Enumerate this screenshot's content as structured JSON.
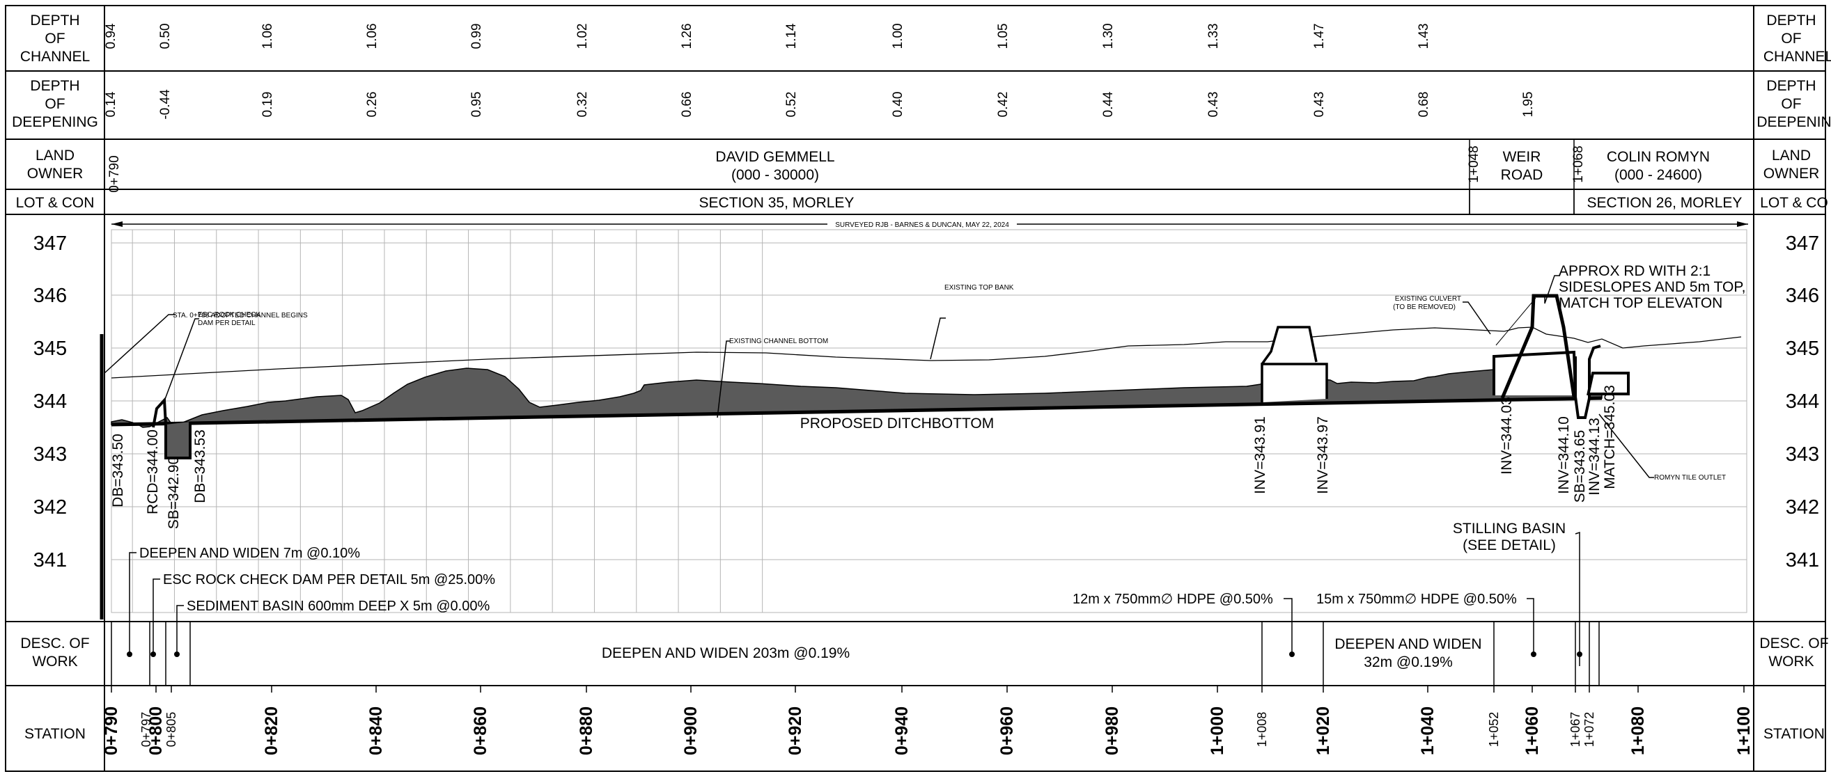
{
  "row_labels": {
    "depth_of_channel": [
      "DEPTH",
      "OF",
      "CHANNEL"
    ],
    "depth_of_deepening": [
      "DEPTH",
      "OF",
      "DEEPENING"
    ],
    "land_owner": [
      "LAND",
      "OWNER"
    ],
    "lot_con": "LOT & CON",
    "desc_of_work": [
      "DESC. OF",
      "WORK"
    ],
    "station": "STATION"
  },
  "right_row_labels": {
    "depth_of_channel": [
      "DEPTH",
      "OF",
      "CHANNEL"
    ],
    "depth_of_deepening": [
      "DEPTH",
      "OF",
      "DEEPENIN"
    ],
    "land_owner": [
      "LAND",
      "OWNER"
    ],
    "lot_con": "LOT & CO",
    "desc_of_work": [
      "DESC. OF",
      "WORK"
    ],
    "station": "STATION"
  },
  "depth_of_channel": [
    "0.94",
    "0.50",
    "1.06",
    "1.06",
    "0.99",
    "1.02",
    "1.26",
    "1.14",
    "1.00",
    "1.05",
    "1.30",
    "1.33",
    "1.47",
    "1.43"
  ],
  "depth_of_deepening": [
    "0.14",
    "-0.44",
    "0.19",
    "0.26",
    "0.95",
    "0.32",
    "0.66",
    "0.52",
    "0.40",
    "0.42",
    "0.44",
    "0.43",
    "0.43",
    "0.68",
    "1.95"
  ],
  "land_owner": {
    "start_station": "0+790",
    "owner1_name": "DAVID GEMMELL",
    "owner1_range": "(000 - 30000)",
    "station_a": "1+048",
    "road_line1": "WEIR",
    "road_line2": "ROAD",
    "station_b": "1+068",
    "owner2_name": "COLIN ROMYN",
    "owner2_range": "(000 - 24600)"
  },
  "lot_con": {
    "section1": "SECTION 35, MORLEY",
    "section2": "SECTION 26, MORLEY"
  },
  "elevation_labels": [
    "347",
    "346",
    "345",
    "344",
    "343",
    "342",
    "341"
  ],
  "annotations": {
    "surveyed": "SURVEYED RJB - BARNES & DUNCAN, MAY 22, 2024",
    "channel_begins": "STA. 0+788 ADOPTED CHANNEL BEGINS",
    "esc_check_1": "ESC ROCK CHECK",
    "esc_check_2": "DAM PER DETAIL",
    "existing_channel_bottom": "EXISTING CHANNEL BOTTOM",
    "existing_top_bank": "EXISTING TOP BANK",
    "culvert_1": "EXISTING CULVERT",
    "culvert_2": "(TO BE REMOVED)",
    "approx_rd_1": "APPROX RD WITH 2:1",
    "approx_rd_2": "SIDESLOPES AND 5m TOP,",
    "approx_rd_3": "MATCH TOP ELEVATON",
    "proposed": "PROPOSED DITCHBOTTOM",
    "tile_outlet": "ROMYN TILE OUTLET",
    "stilling_1": "STILLING BASIN",
    "stilling_2": "(SEE DETAIL)",
    "work_deepen_7": "DEEPEN AND WIDEN 7m @0.10%",
    "work_esc": "ESC ROCK CHECK DAM PER DETAIL 5m @25.00%",
    "work_sediment": "SEDIMENT BASIN 600mm DEEP X 5m @0.00%",
    "hdpe_12": "12m x 750mm∅ HDPE @0.50%",
    "hdpe_15": "15m x 750mm∅ HDPE @0.50%"
  },
  "vertical_labels": [
    "DB=343.50",
    "RCD=344.00",
    "SB=342.90",
    "DB=343.53",
    "INV=343.91",
    "INV=343.97",
    "INV=344.03",
    "INV=344.10",
    "SB=343.65",
    "INV=344.13",
    "MATCH=345.03"
  ],
  "desc_of_work": {
    "main": "DEEPEN AND WIDEN 203m @0.19%",
    "second_1": "DEEPEN AND WIDEN",
    "second_2": "32m @0.19%"
  },
  "stations_major": [
    "0+790",
    "0+800",
    "0+820",
    "0+840",
    "0+860",
    "0+880",
    "0+900",
    "0+920",
    "0+940",
    "0+960",
    "0+980",
    "1+000",
    "1+020",
    "1+040",
    "1+060",
    "1+080",
    "1+100"
  ],
  "stations_minor": [
    "0+797",
    "0+805",
    "1+008",
    "1+052",
    "1+067",
    "1+072"
  ]
}
